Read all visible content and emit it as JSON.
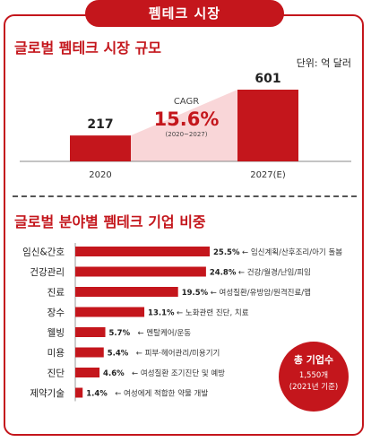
{
  "header": {
    "title": "펨테크 시장"
  },
  "market": {
    "title": "글로벌 펨테크 시장 규모",
    "unit": "단위: 억 달러"
  },
  "sector": {
    "title": "글로벌 분야별 펨테크 기업 비중"
  },
  "badge": {
    "line1": "총 기업수",
    "line2": "1,550개",
    "line3": "(2021년 기준)"
  },
  "colors": {
    "accent": "#c4161c",
    "shade": "#f9d6d8"
  },
  "chart_data": [
    {
      "type": "bar",
      "categories": [
        "2020",
        "2027(E)"
      ],
      "values": [
        217,
        601
      ],
      "annotation": {
        "label": "CAGR",
        "value": "15.6%",
        "period": "(2020~2027)"
      }
    },
    {
      "type": "bar",
      "orientation": "horizontal",
      "categories": [
        "임신&간호",
        "건강관리",
        "진료",
        "장수",
        "웰빙",
        "미용",
        "진단",
        "제약기술"
      ],
      "values": [
        25.5,
        24.8,
        19.5,
        13.1,
        5.7,
        5.4,
        4.6,
        1.4
      ],
      "value_labels": [
        "25.5%",
        "24.8%",
        "19.5%",
        "13.1%",
        "5.7%",
        "5.4%",
        "4.6%",
        "1.4%"
      ],
      "annotations": [
        "← 임신계획/산후조리/아기 돌봄",
        "← 건강/월경/난임/피임",
        "← 여성질환/유방암/원격진료/앱",
        "← 노화관련 진단, 치료",
        "← 멘탈케어/운동",
        "← 피부·헤어관리/미용기기",
        "← 여성질환 조기진단 및 예방",
        "← 여성에게 적합한 약물 개발"
      ]
    }
  ]
}
